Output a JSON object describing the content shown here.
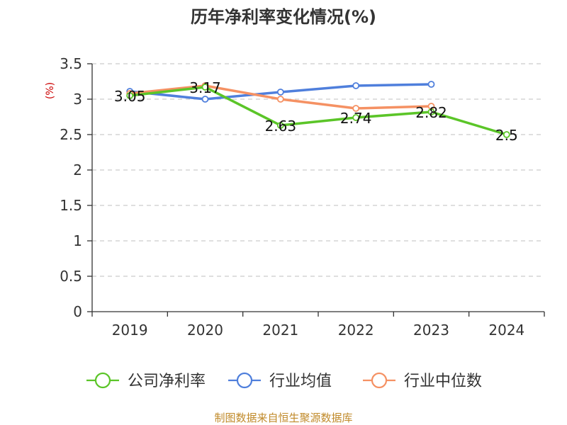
{
  "chart_data": {
    "type": "line",
    "title": "历年净利率变化情况(%)",
    "unit_label": "(%)",
    "categories": [
      "2019",
      "2020",
      "2021",
      "2022",
      "2023",
      "2024"
    ],
    "ylim": [
      0,
      3.5
    ],
    "yticks": [
      "0",
      "0.5",
      "1",
      "1.5",
      "2",
      "2.5",
      "3",
      "3.5"
    ],
    "grid": true,
    "legend_position": "bottom",
    "series": [
      {
        "name": "公司净利率",
        "color": "#5bc528",
        "values": [
          3.05,
          3.17,
          2.63,
          2.74,
          2.82,
          2.5
        ],
        "labels": [
          "3.05",
          "3.17",
          "2.63",
          "2.74",
          "2.82",
          "2.5"
        ]
      },
      {
        "name": "行业均值",
        "color": "#4f7fdc",
        "values": [
          3.11,
          3.0,
          3.1,
          3.19,
          3.21,
          null
        ]
      },
      {
        "name": "行业中位数",
        "color": "#f59163",
        "values": [
          3.08,
          3.19,
          3.0,
          2.87,
          2.9,
          null
        ]
      }
    ]
  },
  "source": "制图数据来自恒生聚源数据库"
}
